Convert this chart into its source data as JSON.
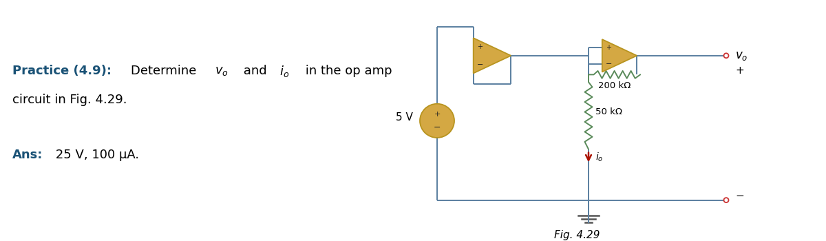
{
  "bg_color": "#ffffff",
  "text_color": "#000000",
  "blue_color": "#1a5276",
  "op_amp_fill": "#d4a843",
  "op_amp_edge": "#b8941f",
  "resistor_color": "#5a8a5a",
  "wire_color": "#5a7fa0",
  "current_arrow_color": "#aa1100",
  "terminal_color": "#cc3333",
  "ground_color": "#555555",
  "practice_text": "Practice (4.9):",
  "ans_label": "Ans:",
  "ans_text": " 25 V, 100 μA.",
  "fig_label": "Fig. 4.29",
  "source_label": "5 V",
  "r50_label": "50 kΩ",
  "r200_label": "200 kΩ",
  "vo_label": "v_o",
  "io_label": "i_o"
}
